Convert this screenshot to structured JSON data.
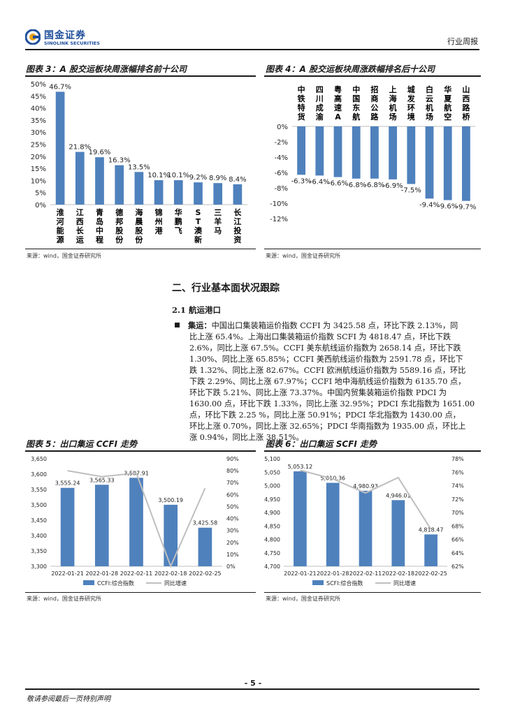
{
  "header": {
    "logo_cn": "国金证券",
    "logo_en": "SINOLINK SECURITIES",
    "doc_type": "行业周报"
  },
  "fig3": {
    "title": "图表 3：A 股交运板块周涨幅排名前十公司",
    "source": "来源：wind，国金证券研究所",
    "bar_color": "#4F81BD",
    "chart_data": {
      "type": "bar",
      "categories": [
        "淮河能源",
        "江西长运",
        "青岛中程",
        "德邦股份",
        "海晨股份",
        "锦州港",
        "华鹏飞",
        "ST澳新",
        "三羊马",
        "长江投资"
      ],
      "values": [
        46.7,
        21.8,
        19.6,
        16.3,
        13.5,
        10.1,
        10.1,
        9.2,
        8.9,
        8.4
      ],
      "data_labels": [
        "46.7%",
        "21.8%",
        "19.6%",
        "16.3%",
        "13.5%",
        "10.1%",
        "10.1%",
        "9.2%",
        "8.9%",
        "8.4%"
      ],
      "y_ticks": [
        "0%",
        "5%",
        "10%",
        "15%",
        "20%",
        "25%",
        "30%",
        "35%",
        "40%",
        "45%",
        "50%"
      ],
      "ylim": [
        0,
        50
      ]
    }
  },
  "fig4": {
    "title": "图表 4：A 股交运板块周涨跌幅排名后十公司",
    "source": "来源：wind，国金证券研究所",
    "bar_color": "#4F81BD",
    "chart_data": {
      "type": "bar",
      "categories": [
        "中铁特货",
        "四川成渝",
        "粤高速A",
        "中国东航",
        "招商公路",
        "上海机场",
        "城发环境",
        "白云机场",
        "华夏航空",
        "山西路桥"
      ],
      "values": [
        -6.3,
        -6.4,
        -6.6,
        -6.8,
        -6.8,
        -6.9,
        -7.5,
        -9.4,
        -9.6,
        -9.7
      ],
      "data_labels": [
        "-6.3%",
        "-6.4%",
        "-6.6%",
        "-6.8%",
        "-6.8%",
        "-6.9%",
        "-7.5%",
        "-9.4%",
        "-9.6%",
        "-9.7%"
      ],
      "y_ticks": [
        "0%",
        "-2%",
        "-4%",
        "-6%",
        "-8%",
        "-10%",
        "-12%"
      ],
      "ylim": [
        -12,
        0
      ]
    }
  },
  "section": {
    "heading": "二、行业基本面状况跟踪",
    "subheading": "2.1 航运港口",
    "bullet_label": "集运：",
    "lines": [
      "中国出口集装箱运价指数 CCFI 为 3425.58 点，环比下跌 2.13%，同",
      "比上涨 65.4%。上海出口集装箱运价指数 SCFI 为 4818.47 点，环比下跌",
      "2.6%，同比上涨 67.5%。CCFI 美东航线运价指数为 2658.14 点，环比下跌",
      "1.30%、同比上涨 65.85%；CCFI 美西航线运价指数为 2591.78 点，环比下",
      "跌 1.32%、同比上涨 82.67%。CCFI 欧洲航线运价指数为 5589.16 点，环比",
      "下跌 2.29%、同比上涨 67.97%；CCFI 地中海航线运价指数为 6135.70 点，",
      "环比下跌 5.21%、同比上涨 73.37%。中国内贸集装箱运价指数 PDCI 为",
      "1630.00 点，环比下跌 1.33%，同比上涨 32.95%；PDCI 东北指数为 1651.00",
      "点，环比下跌 2.25 %，同比上涨 50.91%；PDCI 华北指数为 1430.00 点，",
      "环比上涨 0.70%，同比上涨 32.65%；PDCI 华南指数为 1935.00 点，环比上",
      "涨 0.94%，同比上涨 38.51%。"
    ]
  },
  "fig5": {
    "title": "图表 5：出口集运 CCFI 走势",
    "source": "来源：wind，国金证券研究所",
    "bar_color": "#4F81BD",
    "line_color": "#BFBFBF",
    "chart_data": {
      "type": "bar",
      "categories": [
        "2022-01-21",
        "2022-01-28",
        "2022-02-11",
        "2022-02-18",
        "2022-02-25"
      ],
      "series": [
        {
          "name": "CCFI:综合指数",
          "type": "bar",
          "axis": "left",
          "values": [
            3555.24,
            3565.33,
            3587.91,
            3500.19,
            3425.58
          ]
        },
        {
          "name": "同比增速",
          "type": "line",
          "axis": "right",
          "values": [
            80,
            75,
            78,
            0,
            65.4
          ]
        }
      ],
      "data_labels": [
        "3,555.24",
        "3,565.33",
        "3,587.91",
        "3,500.19",
        "3,425.58"
      ],
      "y_left_ticks": [
        "3,300",
        "3,350",
        "3,400",
        "3,450",
        "3,500",
        "3,550",
        "3,600",
        "3,650"
      ],
      "y_right_ticks": [
        "0%",
        "10%",
        "20%",
        "30%",
        "40%",
        "50%",
        "60%",
        "70%",
        "80%",
        "90%"
      ],
      "ylim_left": [
        3300,
        3650
      ],
      "ylim_right": [
        0,
        90
      ],
      "legend_position": "bottom"
    }
  },
  "fig6": {
    "title": "图表 6：出口集运 SCFI 走势",
    "source": "来源：wind，国金证券研究所",
    "bar_color": "#4F81BD",
    "line_color": "#BFBFBF",
    "chart_data": {
      "type": "bar",
      "categories": [
        "2022-01-21",
        "2022-01-28",
        "2022-02-11",
        "2022-02-18",
        "2022-02-25"
      ],
      "series": [
        {
          "name": "SCFI:综合指数",
          "type": "bar",
          "axis": "left",
          "values": [
            5053.12,
            5010.36,
            4980.93,
            4946.01,
            4818.47
          ]
        },
        {
          "name": "同比增速",
          "type": "line",
          "axis": "right",
          "values": [
            76.3,
            75.0,
            72.9,
            75.2,
            67.5
          ]
        }
      ],
      "data_labels": [
        "5,053.12",
        "5,010.36",
        "4,980.93",
        "4,946.01",
        "4,818.47"
      ],
      "y_left_ticks": [
        "4,700",
        "4,750",
        "4,800",
        "4,850",
        "4,900",
        "4,950",
        "5,000",
        "5,050",
        "5,100"
      ],
      "y_right_ticks": [
        "62%",
        "64%",
        "66%",
        "68%",
        "70%",
        "72%",
        "74%",
        "76%",
        "78%"
      ],
      "ylim_left": [
        4700,
        5100
      ],
      "ylim_right": [
        62,
        78
      ],
      "legend_position": "bottom"
    }
  },
  "footer": {
    "page_number": "- 5 -",
    "disclaimer": "敬请参阅最后一页特别声明"
  }
}
